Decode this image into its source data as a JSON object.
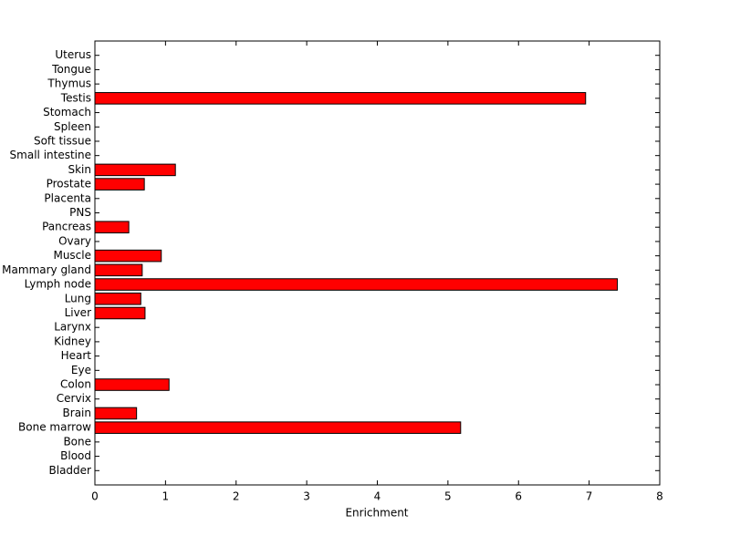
{
  "chart_data": {
    "type": "barh",
    "x_label": "Enrichment",
    "categories": [
      "Bladder",
      "Blood",
      "Bone",
      "Bone marrow",
      "Brain",
      "Cervix",
      "Colon",
      "Eye",
      "Heart",
      "Kidney",
      "Larynx",
      "Liver",
      "Lung",
      "Lymph node",
      "Mammary gland",
      "Muscle",
      "Ovary",
      "Pancreas",
      "PNS",
      "Placenta",
      "Prostate",
      "Skin",
      "Small intestine",
      "Soft tissue",
      "Spleen",
      "Stomach",
      "Testis",
      "Thymus",
      "Tongue",
      "Uterus"
    ],
    "values": [
      0,
      0,
      0,
      5.18,
      0.59,
      0,
      1.05,
      0,
      0,
      0,
      0,
      0.71,
      0.65,
      7.4,
      0.67,
      0.94,
      0,
      0.48,
      0,
      0,
      0.7,
      1.14,
      0,
      0,
      0,
      0,
      6.95,
      0,
      0,
      0
    ],
    "color": "#ff0000",
    "xlim": [
      0,
      8
    ],
    "xticks": [
      0,
      1,
      2,
      3,
      4,
      5,
      6,
      7,
      8
    ]
  }
}
